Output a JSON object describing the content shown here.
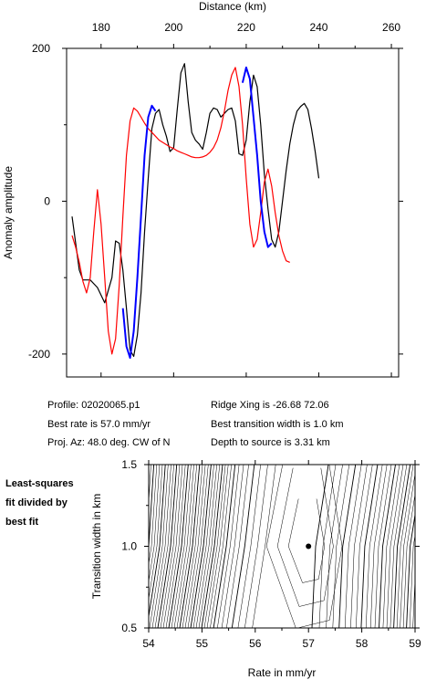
{
  "profile_chart": {
    "type": "line",
    "xlabel": "Distance (km)",
    "ylabel": "Anomaly amplitude",
    "xlim": [
      170.5,
      262
    ],
    "ylim": [
      -230,
      200
    ],
    "x_ticks": [
      180,
      200,
      220,
      240,
      260
    ],
    "y_ticks": [
      200,
      0,
      -200
    ],
    "series": [
      {
        "color": "#000000",
        "points": [
          [
            172,
            -20
          ],
          [
            174,
            -90
          ],
          [
            175,
            -103
          ],
          [
            177,
            -103
          ],
          [
            179,
            -113
          ],
          [
            181,
            -133
          ],
          [
            183,
            -100
          ],
          [
            184,
            -52
          ],
          [
            185,
            -55
          ],
          [
            186,
            -90
          ],
          [
            187,
            -140
          ],
          [
            188,
            -195
          ],
          [
            189,
            -203
          ],
          [
            190,
            -175
          ],
          [
            191,
            -120
          ],
          [
            192,
            -40
          ],
          [
            193,
            30
          ],
          [
            194,
            95
          ],
          [
            195,
            115
          ],
          [
            196,
            120
          ],
          [
            197,
            100
          ],
          [
            198,
            85
          ],
          [
            199,
            65
          ],
          [
            200,
            70
          ],
          [
            201,
            120
          ],
          [
            202,
            168
          ],
          [
            203,
            180
          ],
          [
            204,
            130
          ],
          [
            205,
            90
          ],
          [
            206,
            80
          ],
          [
            207,
            75
          ],
          [
            208,
            68
          ],
          [
            209,
            90
          ],
          [
            210,
            115
          ],
          [
            211,
            122
          ],
          [
            212,
            120
          ],
          [
            213,
            110
          ],
          [
            214,
            115
          ],
          [
            215,
            120
          ],
          [
            216,
            122
          ],
          [
            217,
            105
          ],
          [
            218,
            62
          ],
          [
            219,
            60
          ],
          [
            220,
            80
          ],
          [
            221,
            130
          ],
          [
            222,
            165
          ],
          [
            223,
            150
          ],
          [
            224,
            100
          ],
          [
            225,
            35
          ],
          [
            226,
            -10
          ],
          [
            227,
            -50
          ],
          [
            228,
            -60
          ],
          [
            229,
            -40
          ],
          [
            230,
            0
          ],
          [
            231,
            40
          ],
          [
            232,
            75
          ],
          [
            233,
            100
          ],
          [
            234,
            118
          ],
          [
            235,
            124
          ],
          [
            236,
            128
          ],
          [
            237,
            120
          ],
          [
            238,
            95
          ],
          [
            239,
            65
          ],
          [
            240,
            30
          ]
        ]
      },
      {
        "color": "#ff0000",
        "points": [
          [
            172,
            -45
          ],
          [
            173,
            -60
          ],
          [
            174,
            -80
          ],
          [
            175,
            -105
          ],
          [
            176,
            -120
          ],
          [
            177,
            -100
          ],
          [
            178,
            -40
          ],
          [
            179,
            15
          ],
          [
            180,
            -30
          ],
          [
            181,
            -100
          ],
          [
            182,
            -170
          ],
          [
            183,
            -200
          ],
          [
            184,
            -180
          ],
          [
            185,
            -110
          ],
          [
            186,
            -20
          ],
          [
            187,
            60
          ],
          [
            188,
            105
          ],
          [
            189,
            122
          ],
          [
            190,
            118
          ],
          [
            191,
            110
          ],
          [
            192,
            102
          ],
          [
            193,
            95
          ],
          [
            194,
            90
          ],
          [
            195,
            85
          ],
          [
            196,
            80
          ],
          [
            197,
            77
          ],
          [
            198,
            74
          ],
          [
            199,
            71
          ],
          [
            200,
            69
          ],
          [
            201,
            66
          ],
          [
            202,
            64
          ],
          [
            203,
            62
          ],
          [
            204,
            60
          ],
          [
            205,
            58
          ],
          [
            206,
            57
          ],
          [
            207,
            57
          ],
          [
            208,
            58
          ],
          [
            209,
            60
          ],
          [
            210,
            64
          ],
          [
            211,
            70
          ],
          [
            212,
            80
          ],
          [
            213,
            96
          ],
          [
            214,
            118
          ],
          [
            215,
            145
          ],
          [
            216,
            165
          ],
          [
            217,
            175
          ],
          [
            218,
            150
          ],
          [
            219,
            100
          ],
          [
            220,
            30
          ],
          [
            221,
            -30
          ],
          [
            222,
            -60
          ],
          [
            223,
            -50
          ],
          [
            224,
            -15
          ],
          [
            225,
            25
          ],
          [
            226,
            42
          ],
          [
            227,
            20
          ],
          [
            228,
            -15
          ],
          [
            229,
            -45
          ],
          [
            230,
            -65
          ],
          [
            231,
            -78
          ],
          [
            232,
            -80
          ]
        ]
      },
      {
        "color": "#0000ff",
        "points": [
          [
            186,
            -140
          ],
          [
            187,
            -190
          ],
          [
            188,
            -205
          ],
          [
            189,
            -170
          ],
          [
            190,
            -100
          ],
          [
            191,
            -20
          ],
          [
            192,
            60
          ],
          [
            193,
            110
          ],
          [
            194,
            125
          ],
          [
            195,
            118
          ]
        ]
      },
      {
        "color": "#0000ff",
        "points": [
          [
            219,
            155
          ],
          [
            220,
            175
          ],
          [
            221,
            160
          ],
          [
            222,
            110
          ],
          [
            223,
            60
          ],
          [
            224,
            0
          ],
          [
            225,
            -40
          ],
          [
            226,
            -60
          ],
          [
            227,
            -55
          ]
        ]
      }
    ]
  },
  "contour_chart": {
    "type": "contour",
    "xlabel": "Rate in mm/yr",
    "ylabel": "Transition width in km",
    "xlim": [
      54,
      59
    ],
    "ylim": [
      0.5,
      1.5
    ],
    "x_ticks": [
      54,
      55,
      56,
      57,
      58,
      59
    ],
    "y_ticks": [
      0.5,
      1.0,
      1.5
    ],
    "best_fit": {
      "rate": 57.0,
      "width": 1.0
    }
  },
  "info": {
    "profile": "Profile: 02020065.p1",
    "best_rate": "Best rate is 57.0 mm/yr",
    "proj_az": "Proj. Az: 48.0 deg. CW of N",
    "ridge_xing": "Ridge Xing is -26.68 72.06",
    "best_transition": "Best transition width is 1.0 km",
    "depth": "Depth to source is   3.31 km"
  },
  "side_label": [
    "Least-squares",
    "fit divided by",
    "best fit"
  ]
}
